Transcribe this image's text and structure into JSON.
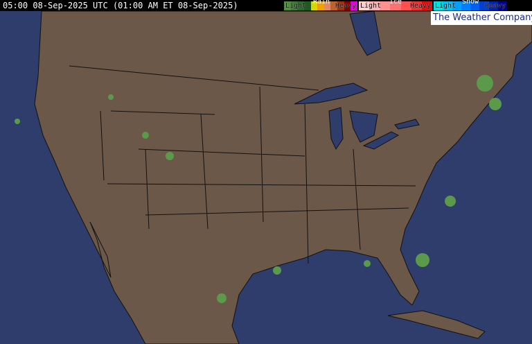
{
  "header": {
    "title": "05:00 08-Sep-2025 UTC (01:00 AM ET 08-Sep-2025)"
  },
  "legend": {
    "rain": {
      "label": "Rain",
      "light": "Light",
      "heavy": "Heavy",
      "colors": [
        "#4f8a3f",
        "#3d7a32",
        "#2d6a28",
        "#1e5a1e",
        "#d8d800",
        "#f0a000",
        "#e08a60",
        "#c06030",
        "#a03010",
        "#800000",
        "#e000e0"
      ]
    },
    "ice": {
      "label": "Ice",
      "light": "Light",
      "heavy": "Heavy",
      "colors": [
        "#ffd0d0",
        "#ffb0b0",
        "#ff9090",
        "#ff7070",
        "#ff5050",
        "#f03030",
        "#e01010"
      ]
    },
    "snow": {
      "label": "Snow",
      "light": "Light",
      "heavy": "Heavy",
      "colors": [
        "#00e0e0",
        "#00c0f0",
        "#00a0ff",
        "#0080ff",
        "#0060f0",
        "#0040d0",
        "#0020b0",
        "#000090"
      ]
    }
  },
  "logo": {
    "text": "The Weather Company"
  },
  "colors": {
    "ocean": "#2f3d6c",
    "land": "#6c5849",
    "border": "#1a1a1a",
    "precip_light": "#5a9a4a"
  }
}
